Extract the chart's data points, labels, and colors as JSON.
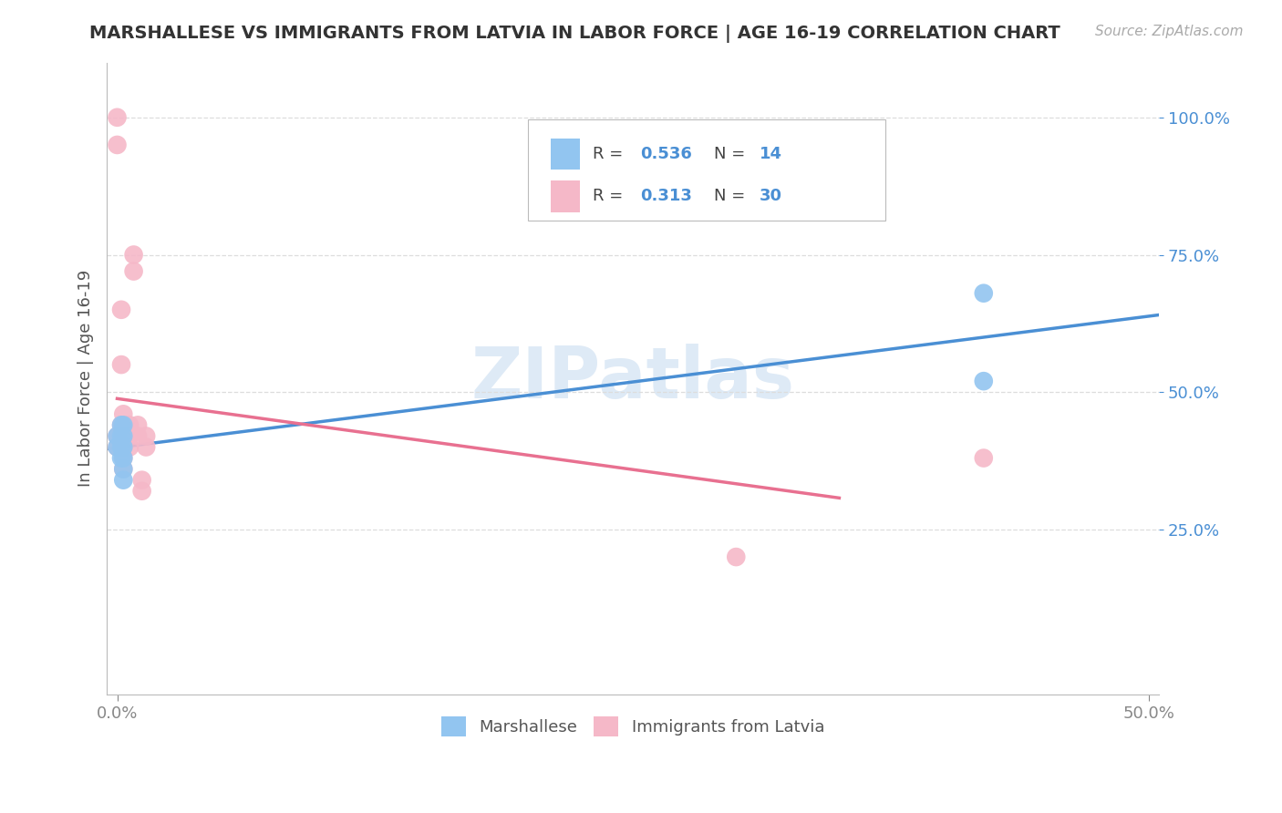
{
  "title": "MARSHALLESE VS IMMIGRANTS FROM LATVIA IN LABOR FORCE | AGE 16-19 CORRELATION CHART",
  "source_text": "Source: ZipAtlas.com",
  "ylabel": "In Labor Force | Age 16-19",
  "xlim": [
    -0.005,
    0.505
  ],
  "ylim": [
    -0.05,
    1.1
  ],
  "xticks": [
    0.0,
    0.1,
    0.2,
    0.3,
    0.4,
    0.5
  ],
  "xticklabels": [
    "0.0%",
    "",
    "",
    "",
    "",
    "50.0%"
  ],
  "yticks": [
    0.25,
    0.5,
    0.75,
    1.0
  ],
  "yticklabels": [
    "25.0%",
    "50.0%",
    "75.0%",
    "100.0%"
  ],
  "blue_R": "0.536",
  "blue_N": "14",
  "pink_R": "0.313",
  "pink_N": "30",
  "blue_color": "#92C5F0",
  "pink_color": "#F5B8C8",
  "blue_line_color": "#4A8FD4",
  "pink_line_color": "#E87090",
  "watermark_color": "#C8DCF0",
  "grid_color": "#DDDDDD",
  "blue_points_x": [
    0.0,
    0.0,
    0.002,
    0.002,
    0.002,
    0.002,
    0.003,
    0.003,
    0.003,
    0.003,
    0.003,
    0.003,
    0.42,
    0.42
  ],
  "blue_points_y": [
    0.42,
    0.4,
    0.42,
    0.44,
    0.4,
    0.38,
    0.42,
    0.44,
    0.4,
    0.38,
    0.36,
    0.34,
    0.52,
    0.68
  ],
  "pink_points_x": [
    0.0,
    0.0,
    0.0,
    0.0,
    0.002,
    0.002,
    0.002,
    0.002,
    0.002,
    0.003,
    0.003,
    0.003,
    0.003,
    0.003,
    0.003,
    0.005,
    0.005,
    0.006,
    0.006,
    0.006,
    0.008,
    0.008,
    0.01,
    0.01,
    0.012,
    0.012,
    0.014,
    0.014,
    0.42,
    0.3
  ],
  "pink_points_y": [
    0.95,
    1.0,
    0.42,
    0.4,
    0.55,
    0.65,
    0.42,
    0.44,
    0.4,
    0.46,
    0.44,
    0.42,
    0.4,
    0.38,
    0.36,
    0.42,
    0.44,
    0.44,
    0.42,
    0.4,
    0.75,
    0.72,
    0.42,
    0.44,
    0.32,
    0.34,
    0.4,
    0.42,
    0.38,
    0.2
  ]
}
